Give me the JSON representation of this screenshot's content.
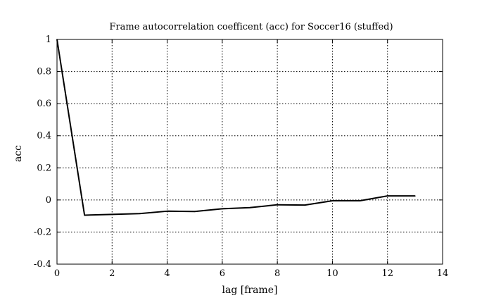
{
  "chart_data": {
    "type": "line",
    "title": "Frame autocorrelation coefficent (acc) for Soccer16 (stuffed)",
    "xlabel": "lag [frame]",
    "ylabel": "acc",
    "xlim": [
      0,
      14
    ],
    "ylim": [
      -0.4,
      1
    ],
    "xticks": [
      0,
      2,
      4,
      6,
      8,
      10,
      12,
      14
    ],
    "yticks": [
      -0.4,
      -0.2,
      0,
      0.2,
      0.4,
      0.6,
      0.8,
      1
    ],
    "xtick_labels": [
      "0",
      "2",
      "4",
      "6",
      "8",
      "10",
      "12",
      "14"
    ],
    "ytick_labels": [
      "-0.4",
      "-0.2",
      "0",
      "0.2",
      "0.4",
      "0.6",
      "0.8",
      "1"
    ],
    "grid": true,
    "series": [
      {
        "x": [
          0,
          1,
          2,
          3,
          4,
          5,
          6,
          7,
          8,
          9,
          10,
          11,
          12,
          13
        ],
        "values": [
          1.0,
          -0.095,
          -0.09,
          -0.085,
          -0.07,
          -0.072,
          -0.055,
          -0.048,
          -0.03,
          -0.032,
          -0.005,
          -0.005,
          0.025,
          0.025
        ],
        "color": "#000000"
      }
    ]
  }
}
